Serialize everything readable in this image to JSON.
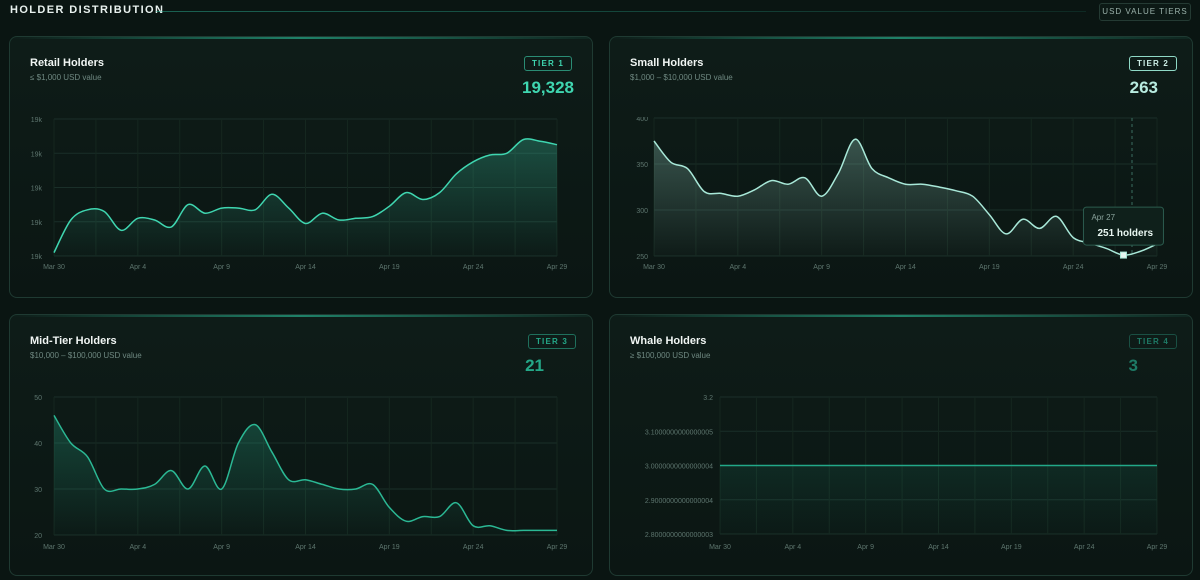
{
  "header": {
    "title": "HOLDER DISTRIBUTION",
    "tiers_button": "USD VALUE TIERS"
  },
  "colors": {
    "background": "#0a1512",
    "accent": "#2dd4aa",
    "tier1": "#3fd6b0",
    "tier2": "#a8e8d8",
    "tier3": "#22a888",
    "tier4": "#1e7a66"
  },
  "cards": [
    {
      "title": "Retail Holders",
      "subtitle": "≤ $1,000 USD value",
      "tier": "TIER 1",
      "count": "19,328"
    },
    {
      "title": "Small Holders",
      "subtitle": "$1,000 – $10,000 USD value",
      "tier": "TIER 2",
      "count": "263",
      "tooltip": {
        "date": "Apr 27",
        "value": "251 holders"
      }
    },
    {
      "title": "Mid-Tier Holders",
      "subtitle": "$10,000 – $100,000 USD value",
      "tier": "TIER 3",
      "count": "21"
    },
    {
      "title": "Whale Holders",
      "subtitle": "≥ $100,000 USD value",
      "tier": "TIER 4",
      "count": "3"
    }
  ],
  "chart_data": [
    {
      "type": "area",
      "x_tick_labels": [
        "Mar 30",
        "Apr 4",
        "Apr 9",
        "Apr 14",
        "Apr 19",
        "Apr 24",
        "Apr 29"
      ],
      "y_tick_labels": [
        "19k",
        "19k",
        "19k",
        "19k",
        "19k"
      ],
      "ylim": [
        0,
        4
      ],
      "grid": true,
      "x_index": [
        0,
        1,
        2,
        3,
        4,
        5,
        6,
        7,
        8,
        9,
        10,
        11,
        12,
        13,
        14,
        15,
        16,
        17,
        18,
        19,
        20,
        21,
        22,
        23,
        24,
        25,
        26,
        27,
        28,
        29,
        30
      ],
      "values": [
        0.1,
        1.05,
        1.35,
        1.3,
        0.75,
        1.1,
        1.05,
        0.85,
        1.5,
        1.25,
        1.4,
        1.4,
        1.35,
        1.8,
        1.4,
        0.95,
        1.25,
        1.05,
        1.1,
        1.15,
        1.45,
        1.85,
        1.65,
        1.85,
        2.4,
        2.75,
        2.95,
        3.0,
        3.4,
        3.35,
        3.25
      ],
      "color": "#3fd6b0"
    },
    {
      "type": "area",
      "x_tick_labels": [
        "Mar 30",
        "Apr 4",
        "Apr 9",
        "Apr 14",
        "Apr 19",
        "Apr 24",
        "Apr 29"
      ],
      "y_tick_labels": [
        "400",
        "350",
        "300",
        "250"
      ],
      "ylim": [
        250,
        400
      ],
      "grid": true,
      "x_index": [
        0,
        1,
        2,
        3,
        4,
        5,
        6,
        7,
        8,
        9,
        10,
        11,
        12,
        13,
        14,
        15,
        16,
        17,
        18,
        19,
        20,
        21,
        22,
        23,
        24,
        25,
        26,
        27,
        28,
        29,
        30
      ],
      "values": [
        375,
        352,
        345,
        320,
        318,
        315,
        322,
        332,
        328,
        335,
        315,
        340,
        377,
        345,
        335,
        328,
        328,
        325,
        321,
        315,
        295,
        274,
        290,
        280,
        293,
        270,
        264,
        258,
        251,
        255,
        263
      ],
      "highlight": {
        "x_index": 28,
        "value": 251
      },
      "color": "#a8e8d8"
    },
    {
      "type": "area",
      "x_tick_labels": [
        "Mar 30",
        "Apr 4",
        "Apr 9",
        "Apr 14",
        "Apr 19",
        "Apr 24",
        "Apr 29"
      ],
      "y_tick_labels": [
        "50",
        "40",
        "30",
        "20"
      ],
      "ylim": [
        20,
        50
      ],
      "grid": true,
      "x_index": [
        0,
        1,
        2,
        3,
        4,
        5,
        6,
        7,
        8,
        9,
        10,
        11,
        12,
        13,
        14,
        15,
        16,
        17,
        18,
        19,
        20,
        21,
        22,
        23,
        24,
        25,
        26,
        27,
        28,
        29,
        30
      ],
      "values": [
        46,
        40,
        37,
        30,
        30,
        30,
        31,
        34,
        30,
        35,
        30,
        40,
        44,
        38,
        32,
        32,
        31,
        30,
        30,
        31,
        26,
        23,
        24,
        24,
        27,
        22,
        22,
        21,
        21,
        21,
        21
      ],
      "color": "#2bb894"
    },
    {
      "type": "area",
      "x_tick_labels": [
        "Mar 30",
        "Apr 4",
        "Apr 9",
        "Apr 14",
        "Apr 19",
        "Apr 24",
        "Apr 29"
      ],
      "y_tick_labels": [
        "3.2",
        "3.1000000000000005",
        "3.0000000000000004",
        "2.9000000000000004",
        "2.8000000000000003"
      ],
      "ylim": [
        2.8,
        3.2
      ],
      "grid": true,
      "x_index": [
        0,
        30
      ],
      "values": [
        3,
        3
      ],
      "color": "#22a888"
    }
  ]
}
